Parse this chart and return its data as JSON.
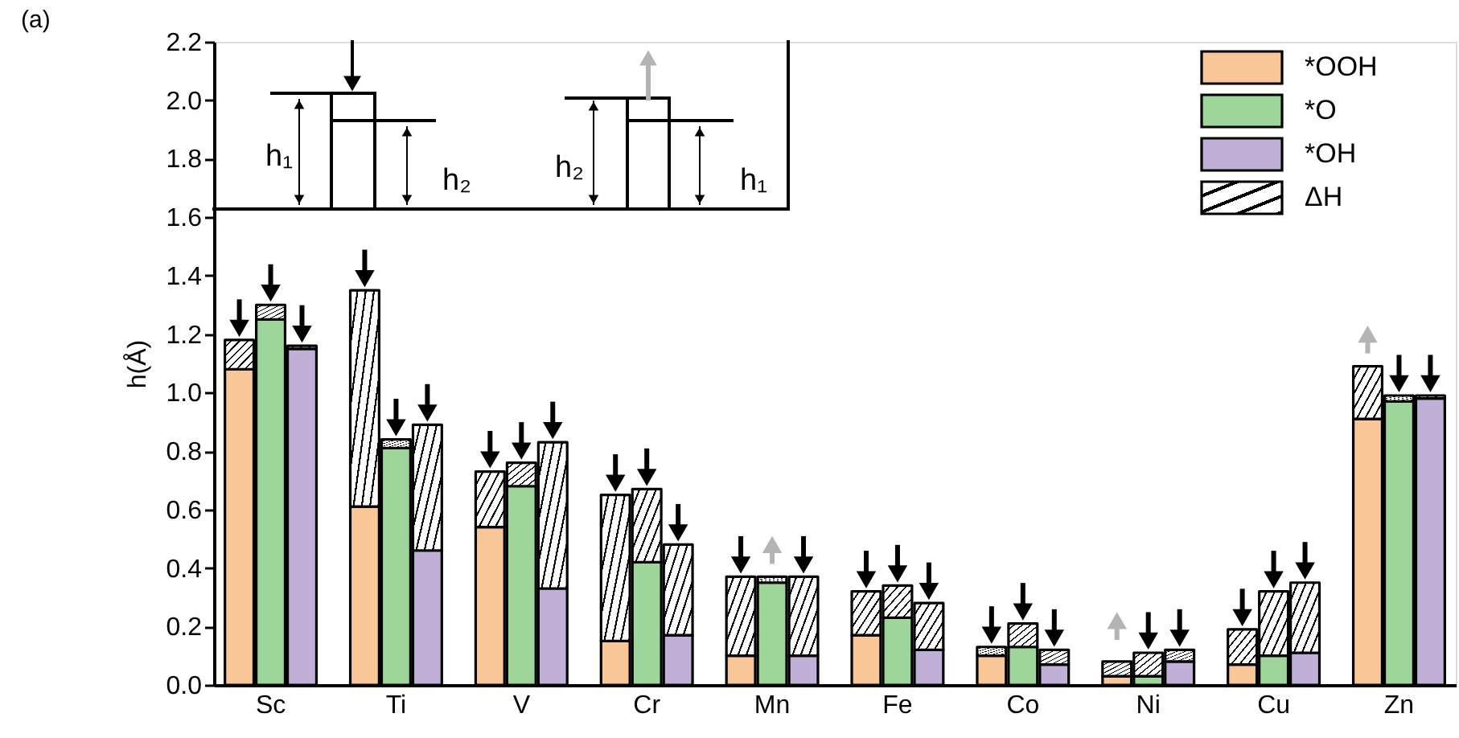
{
  "chart_data": {
    "type": "bar",
    "stacked": true,
    "ylabel": "h(Å)",
    "categories": [
      null,
      "Sc",
      null,
      null,
      null,
      "Ti",
      null,
      null,
      null,
      "V",
      null,
      null,
      null,
      "Cr",
      null,
      null,
      null,
      "Mn",
      null,
      null,
      null,
      "Fe",
      null,
      null,
      null,
      "Co",
      null,
      null,
      null,
      "Ni",
      null,
      null,
      null,
      "Cu",
      null,
      null,
      null,
      "Zn",
      null
    ],
    "series": [
      {
        "name": "*OOH",
        "color": "#f8c697",
        "values": [
          1.08,
          null,
          null,
          null,
          0.61,
          null,
          null,
          null,
          0.54,
          null,
          null,
          null,
          0.15,
          null,
          null,
          null,
          0.1,
          null,
          null,
          null,
          0.17,
          null,
          null,
          null,
          0.1,
          null,
          null,
          null,
          0.03,
          null,
          null,
          null,
          0.07,
          null,
          null,
          null,
          0.91,
          null,
          null
        ]
      },
      {
        "name": "*O",
        "color": "#9dd59b",
        "values": [
          null,
          1.25,
          null,
          null,
          null,
          0.81,
          null,
          null,
          null,
          0.68,
          null,
          null,
          null,
          0.42,
          null,
          null,
          null,
          0.35,
          null,
          null,
          null,
          0.23,
          null,
          null,
          null,
          0.13,
          null,
          null,
          null,
          0.03,
          null,
          null,
          null,
          0.1,
          null,
          null,
          null,
          0.97,
          null
        ]
      },
      {
        "name": "*OH",
        "color": "#c0b0d8",
        "values": [
          null,
          null,
          1.15,
          null,
          null,
          null,
          0.46,
          null,
          null,
          null,
          0.33,
          null,
          null,
          null,
          0.17,
          null,
          null,
          null,
          0.1,
          null,
          null,
          null,
          0.12,
          null,
          null,
          null,
          0.07,
          null,
          null,
          null,
          0.08,
          null,
          null,
          null,
          0.11,
          null,
          null,
          null,
          0.98
        ]
      },
      {
        "name": "ΔH",
        "color": "#000000",
        "values": [
          0.1,
          0.05,
          0.01,
          null,
          0.74,
          0.03,
          0.43,
          null,
          0.19,
          0.08,
          0.5,
          null,
          0.5,
          0.25,
          0.31,
          null,
          0.27,
          0.02,
          0.27,
          null,
          0.15,
          0.11,
          0.16,
          null,
          0.03,
          0.08,
          0.05,
          null,
          0.05,
          0.08,
          0.04,
          null,
          0.12,
          0.22,
          0.24,
          null,
          0.18,
          0.02,
          0.01
        ]
      },
      {
        "type": "scatter",
        "marker": "triangle",
        "color": "#000000",
        "values": [
          1.22,
          1.34,
          1.2,
          null,
          1.39,
          0.88,
          0.93,
          null,
          0.77,
          0.8,
          0.87,
          null,
          0.69,
          0.71,
          0.52,
          null,
          0.41,
          null,
          0.41,
          null,
          0.36,
          0.38,
          0.32,
          null,
          0.17,
          0.25,
          0.16,
          null,
          null,
          0.15,
          0.16,
          null,
          0.23,
          0.36,
          0.39,
          null,
          null,
          1.03,
          1.03
        ]
      },
      {
        "type": "scatter",
        "marker": "triangle",
        "color": "#b4b4b4",
        "values": [
          null,
          null,
          null,
          null,
          null,
          null,
          null,
          null,
          null,
          null,
          null,
          null,
          null,
          null,
          null,
          null,
          null,
          0.48,
          null,
          null,
          null,
          null,
          null,
          null,
          null,
          null,
          null,
          null,
          0.22,
          null,
          null,
          null,
          null,
          null,
          null,
          null,
          1.2,
          null,
          null
        ]
      }
    ],
    "ylim": [
      0,
      2.2
    ],
    "yticks": [
      {
        "value": 0,
        "label": "0.0"
      },
      0.2,
      0.4,
      0.6,
      0.8,
      {
        "value": 1,
        "label": "1.0"
      },
      1.2,
      1.4,
      1.6,
      1.8,
      {
        "value": 2,
        "label": "2.0"
      },
      2.2
    ],
    "legend": "top right",
    "annotations": [
      "(a)",
      "h₁",
      "h₂",
      "h₂",
      "h₁"
    ]
  }
}
